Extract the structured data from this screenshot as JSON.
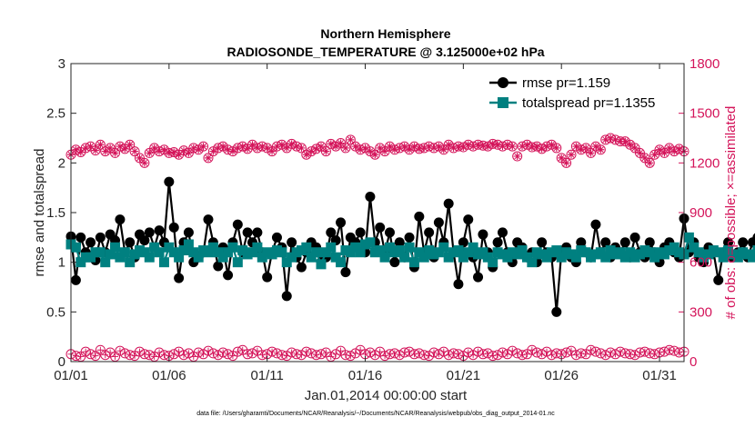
{
  "chart_data": {
    "type": "line",
    "title_line1": "Northern Hemisphere",
    "title_line2": "RADIOSONDE_TEMPERATURE @ 3.125000e+02 hPa",
    "xlabel": "Jan.01,2014 00:00:00 start",
    "ylabel_left": "rmse and totalspread",
    "ylabel_right": "# of obs: o=possible; ×=assimilated",
    "footer": "data file: /Users/gharamti/Documents/NCAR/Reanalysis/~/Documents/NCAR/Reanalysis/webpub/obs_diag_output_2014-01.nc",
    "x_ticks": [
      "01/01",
      "01/06",
      "01/11",
      "01/16",
      "01/21",
      "01/26",
      "01/31"
    ],
    "x_tick_days": [
      0,
      5,
      10,
      15,
      20,
      25,
      30
    ],
    "xlim_days": [
      0,
      31.25
    ],
    "y_left_ticks": [
      "0",
      "0.5",
      "1",
      "1.5",
      "2",
      "2.5",
      "3"
    ],
    "ylim_left": [
      0,
      3
    ],
    "y_right_ticks": [
      "0",
      "300",
      "600",
      "900",
      "1200",
      "1500",
      "1800"
    ],
    "ylim_right": [
      0,
      1800
    ],
    "x_step_days": 0.25,
    "legend": [
      {
        "name": "rmse pr=1.159",
        "color": "#000000",
        "marker": "circle"
      },
      {
        "name": "totalspread pr=1.1355",
        "color": "#008080",
        "marker": "square"
      }
    ],
    "colors": {
      "rmse": "#000000",
      "spread": "#008080",
      "obs": "#d4145a",
      "axis": "#262626"
    },
    "series": [
      {
        "name": "rmse",
        "values": [
          1.26,
          0.82,
          1.25,
          1.1,
          1.2,
          1.02,
          1.25,
          1.1,
          1.28,
          1.22,
          1.43,
          1.1,
          1.2,
          1.05,
          1.28,
          1.22,
          1.3,
          1.15,
          1.32,
          1.2,
          1.81,
          1.35,
          0.84,
          1.2,
          1.3,
          1.0,
          1.05,
          1.1,
          1.43,
          1.2,
          0.96,
          1.15,
          0.87,
          1.2,
          1.38,
          1.1,
          1.3,
          1.2,
          1.3,
          1.1,
          0.85,
          1.1,
          1.25,
          1.15,
          0.66,
          1.2,
          1.05,
          0.95,
          1.1,
          1.2,
          1.15,
          1.0,
          1.05,
          1.3,
          1.22,
          1.4,
          0.9,
          1.25,
          1.2,
          1.3,
          1.1,
          1.66,
          1.2,
          1.35,
          1.1,
          1.3,
          1.0,
          1.2,
          1.05,
          1.25,
          0.95,
          1.46,
          1.1,
          1.3,
          1.05,
          1.4,
          1.2,
          1.59,
          1.1,
          0.78,
          1.2,
          1.43,
          1.05,
          0.85,
          1.28,
          1.1,
          0.95,
          1.2,
          1.3,
          1.1,
          1.0,
          1.2,
          1.15,
          1.05,
          1.1,
          1.0,
          1.2,
          1.1,
          1.05,
          0.5,
          1.1,
          1.15,
          1.05,
          1.0,
          1.2,
          1.1,
          1.05,
          1.38,
          1.1,
          1.2,
          1.05,
          1.15,
          1.1,
          1.2,
          1.05,
          1.25,
          1.1,
          1.05,
          1.2,
          1.1,
          1.0,
          1.15,
          1.2,
          1.1,
          1.05,
          1.44,
          1.1,
          1.2,
          1.05,
          1.0,
          1.15,
          1.1,
          0.82,
          1.1,
          1.2,
          1.05,
          1.1,
          1.2,
          1.05,
          1.2,
          1.25,
          0.94,
          1.1,
          0.98,
          1.18,
          1.12
        ]
      },
      {
        "name": "totalspread",
        "values": [
          1.18,
          1.15,
          1.0,
          1.05,
          1.05,
          1.1,
          1.1,
          1.0,
          1.08,
          1.15,
          1.05,
          1.1,
          1.0,
          1.08,
          1.12,
          1.1,
          1.05,
          1.15,
          1.1,
          1.0,
          1.15,
          1.1,
          1.05,
          1.12,
          1.18,
          1.1,
          1.05,
          1.12,
          1.1,
          1.15,
          1.1,
          1.05,
          1.1,
          1.15,
          1.0,
          1.12,
          1.08,
          1.1,
          1.15,
          1.05,
          1.1,
          1.08,
          1.12,
          1.1,
          1.0,
          1.05,
          1.1,
          1.12,
          1.15,
          1.05,
          1.1,
          0.98,
          1.1,
          1.15,
          1.05,
          1.0,
          1.12,
          1.1,
          1.15,
          1.1,
          1.18,
          1.2,
          1.1,
          1.12,
          1.05,
          1.15,
          1.1,
          1.12,
          1.05,
          1.15,
          1.0,
          1.1,
          1.05,
          1.12,
          1.08,
          1.1,
          1.15,
          1.05,
          1.1,
          1.12,
          1.05,
          1.1,
          1.15,
          1.08,
          1.1,
          1.05,
          1.0,
          1.1,
          1.08,
          1.05,
          1.1,
          1.08,
          1.12,
          1.05,
          1.0,
          1.1,
          1.08,
          1.05,
          1.1,
          1.12,
          1.05,
          1.1,
          1.08,
          1.05,
          1.12,
          1.1,
          1.05,
          1.08,
          1.1,
          1.05,
          1.12,
          1.08,
          1.1,
          1.05,
          1.1,
          1.05,
          1.08,
          1.12,
          1.1,
          1.05,
          1.1,
          1.08,
          1.12,
          1.15,
          1.1,
          1.08,
          1.25,
          1.15,
          1.1,
          1.05,
          1.08,
          1.12,
          1.1,
          1.05,
          1.12,
          1.08,
          1.05,
          1.1,
          1.08,
          1.05,
          1.12,
          1.1,
          1.05,
          1.12,
          1.1,
          1.15
        ]
      },
      {
        "name": "obs_possible",
        "values": [
          1250,
          1280,
          1265,
          1290,
          1300,
          1275,
          1310,
          1270,
          1290,
          1260,
          1300,
          1285,
          1310,
          1270,
          1230,
          1200,
          1260,
          1290,
          1270,
          1280,
          1260,
          1265,
          1250,
          1275,
          1260,
          1290,
          1280,
          1300,
          1230,
          1270,
          1290,
          1300,
          1280,
          1270,
          1290,
          1300,
          1285,
          1310,
          1290,
          1300,
          1290,
          1270,
          1300,
          1310,
          1290,
          1315,
          1300,
          1290,
          1250,
          1270,
          1285,
          1300,
          1270,
          1315,
          1300,
          1320,
          1290,
          1340,
          1300,
          1280,
          1290,
          1270,
          1250,
          1290,
          1270,
          1300,
          1280,
          1290,
          1300,
          1280,
          1300,
          1285,
          1290,
          1300,
          1290,
          1300,
          1280,
          1310,
          1290,
          1300,
          1295,
          1310,
          1300,
          1310,
          1305,
          1300,
          1315,
          1310,
          1300,
          1310,
          1300,
          1240,
          1300,
          1310,
          1295,
          1300,
          1285,
          1300,
          1310,
          1290,
          1230,
          1200,
          1250,
          1300,
          1280,
          1290,
          1260,
          1300,
          1280,
          1340,
          1350,
          1340,
          1330,
          1330,
          1310,
          1290,
          1260,
          1230,
          1200,
          1250,
          1280,
          1260,
          1290,
          1270,
          1285,
          1270,
          1290,
          1260,
          1280,
          1270,
          1295,
          1280
        ],
        "marker": "circle-plus"
      },
      {
        "name": "obs_assimilated",
        "values": [
          1250,
          1280,
          1265,
          1290,
          1300,
          1275,
          1310,
          1270,
          1290,
          1260,
          1300,
          1285,
          1310,
          1270,
          1230,
          1200,
          1260,
          1290,
          1270,
          1280,
          1260,
          1265,
          1250,
          1275,
          1260,
          1290,
          1280,
          1300,
          1230,
          1270,
          1290,
          1300,
          1280,
          1270,
          1290,
          1300,
          1285,
          1310,
          1290,
          1300,
          1290,
          1270,
          1300,
          1310,
          1290,
          1315,
          1300,
          1290,
          1250,
          1270,
          1285,
          1300,
          1270,
          1315,
          1300,
          1320,
          1290,
          1340,
          1300,
          1280,
          1290,
          1270,
          1250,
          1290,
          1270,
          1300,
          1280,
          1290,
          1300,
          1280,
          1300,
          1285,
          1290,
          1300,
          1290,
          1300,
          1280,
          1310,
          1290,
          1300,
          1295,
          1310,
          1300,
          1310,
          1305,
          1300,
          1315,
          1310,
          1300,
          1310,
          1300,
          1240,
          1300,
          1310,
          1295,
          1300,
          1285,
          1300,
          1310,
          1290,
          1230,
          1200,
          1250,
          1300,
          1280,
          1290,
          1260,
          1300,
          1280,
          1340,
          1350,
          1340,
          1330,
          1330,
          1310,
          1290,
          1260,
          1230,
          1200,
          1250,
          1280,
          1260,
          1290,
          1270,
          1285,
          1270,
          1290,
          1260,
          1280,
          1270,
          1295,
          1280
        ],
        "marker": "asterisk"
      },
      {
        "name": "obs_possible_low",
        "values": [
          45,
          35,
          30,
          60,
          45,
          35,
          70,
          40,
          55,
          30,
          65,
          50,
          40,
          35,
          60,
          45,
          40,
          30,
          55,
          40,
          35,
          45,
          60,
          40,
          50,
          30,
          55,
          45,
          65,
          50,
          40,
          55,
          45,
          35,
          60,
          70,
          45,
          50,
          65,
          40,
          45,
          60,
          50,
          40,
          35,
          55,
          45,
          40,
          60,
          50,
          40,
          45,
          55,
          30,
          45,
          65,
          40,
          35,
          50,
          70,
          45,
          55,
          40,
          60,
          35,
          45,
          50,
          40,
          55,
          60,
          45,
          50,
          40,
          35,
          55,
          45,
          60,
          40,
          50,
          45,
          35,
          55,
          40,
          60,
          45,
          50,
          35,
          40,
          55,
          45,
          65,
          50,
          40,
          45,
          70,
          55,
          45,
          60,
          40,
          50,
          45,
          55,
          65,
          40,
          50,
          45,
          70,
          60,
          50,
          40,
          55,
          45,
          60,
          50,
          45,
          40,
          55,
          60,
          50,
          45,
          55,
          60,
          70,
          65,
          55,
          60,
          75,
          60,
          50,
          45,
          60,
          55,
          40,
          45,
          65,
          50,
          55,
          40,
          35,
          10
        ],
        "marker": "circle-plus"
      }
    ]
  }
}
